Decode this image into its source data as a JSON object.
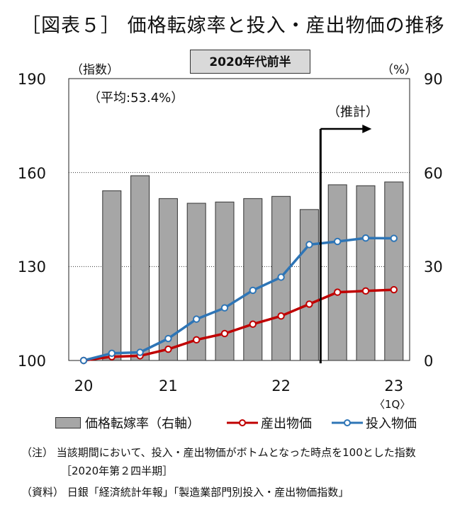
{
  "title": "［図表５］ 価格転嫁率と投入・産出物価の推移",
  "subtitle": "2020年代前半",
  "left_axis_label": "（指数）",
  "right_axis_label": "（%）",
  "average_note": "（平均:53.4%）",
  "forecast_label": "（推計）",
  "x_note": "〈1Q〉",
  "legend": {
    "bar": "価格転嫁率（右軸）",
    "output": "産出物価",
    "input": "投入物価"
  },
  "notes": [
    "（注） 当該期間において、投入・産出物価がボトムとなった時点を100とした指数",
    "［2020年第２四半期］",
    "（資料） 日銀「経済統計年報」「製造業部門別投入・産出物価指数」"
  ],
  "chart_data": {
    "type": "bar+line",
    "x_labels": [
      "20",
      "21",
      "22",
      "23"
    ],
    "x_label_positions": [
      0,
      3,
      7,
      11
    ],
    "left_axis": {
      "ylim": [
        100,
        190
      ],
      "ticks": [
        "100",
        "130",
        "160",
        "190"
      ]
    },
    "right_axis": {
      "ylim": [
        0,
        90
      ],
      "ticks": [
        "0",
        "30",
        "60",
        "90"
      ]
    },
    "gridlines": [
      130,
      160
    ],
    "forecast_start_index": 8.4,
    "bars": {
      "name": "価格転嫁率（右軸）",
      "color": "#a6a6a6",
      "values": [
        null,
        54.2,
        59,
        51.7,
        50.2,
        50.6,
        51.7,
        52.4,
        48.2,
        56.1,
        55.8,
        57
      ]
    },
    "series": [
      {
        "name": "産出物価",
        "color": "#c00000",
        "values": [
          100,
          101.2,
          101.5,
          103.6,
          106.6,
          108.6,
          111.6,
          114.2,
          118,
          121.8,
          122.2,
          122.6
        ]
      },
      {
        "name": "投入物価",
        "color": "#2e75b6",
        "values": [
          100,
          102.3,
          102.6,
          107,
          113.2,
          116.8,
          122.4,
          126.6,
          137,
          138,
          139.1,
          139
        ]
      }
    ],
    "colors": {
      "bar": "#a6a6a6",
      "output": "#c00000",
      "input": "#2e75b6"
    }
  }
}
